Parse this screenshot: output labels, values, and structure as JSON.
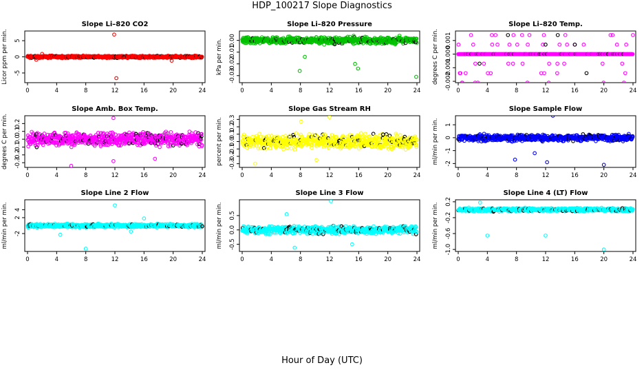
{
  "title": "HDP_100217  Slope Diagnostics",
  "x_axis_label": "Hour of Day (UTC)",
  "chart_data": [
    {
      "type": "scatter",
      "title": "Slope Li–820 CO2",
      "ylabel": "Licor ppm per min.",
      "color": "#ff0000",
      "xlim": [
        0,
        24
      ],
      "xticks": [
        0,
        4,
        8,
        12,
        16,
        20,
        24
      ],
      "ylim": [
        -8,
        8
      ],
      "yticks": [
        -5,
        0,
        5
      ],
      "yticklabels": [
        "-5",
        "0",
        "5"
      ],
      "base": 0,
      "spread": 0.5,
      "outliers": [
        [
          11.9,
          6.9
        ],
        [
          12.2,
          -6.6
        ],
        [
          2.0,
          0.9
        ],
        [
          19.8,
          -1.2
        ],
        [
          1.2,
          -0.9
        ]
      ],
      "seed": 11
    },
    {
      "type": "scatter",
      "title": "Slope Li–820 Pressure",
      "ylabel": "kPa per min.",
      "color": "#00c000",
      "xlim": [
        0,
        24
      ],
      "xticks": [
        0,
        4,
        8,
        12,
        16,
        20,
        24
      ],
      "ylim": [
        -0.036,
        0.008
      ],
      "yticks": [
        -0.03,
        -0.02,
        -0.01,
        0
      ],
      "yticklabels": [
        "-0.03",
        "-0.02",
        "-0.01",
        "0.00"
      ],
      "base": 0,
      "spread": 0.004,
      "outliers": [
        [
          7.9,
          -0.026
        ],
        [
          15.9,
          -0.024
        ],
        [
          23.9,
          -0.031
        ],
        [
          15.3,
          0.004
        ],
        [
          21.6,
          0.004
        ],
        [
          15.5,
          -0.02
        ],
        [
          8.6,
          -0.014
        ]
      ],
      "seed": 22
    },
    {
      "type": "scatter",
      "title": "Slope Li–820 Temp.",
      "ylabel": "degrees C per min.",
      "color": "#ff00ff",
      "xlim": [
        0,
        24
      ],
      "xticks": [
        0,
        4,
        8,
        12,
        16,
        20,
        24
      ],
      "ylim": [
        -0.0021,
        0.0017
      ],
      "yticks": [
        -0.002,
        -0.001,
        0,
        0.001
      ],
      "yticklabels": [
        "-0.002",
        "-0.001",
        "0.000",
        "0.001"
      ],
      "base": 0,
      "spread": 0,
      "levels": [
        0.0014,
        0.0007,
        -0.0007,
        -0.0014,
        -0.0021
      ],
      "outliers": [],
      "seed": 33
    },
    {
      "type": "scatter",
      "title": "Slope Amb. Box Temp.",
      "ylabel": "degrees C per min.",
      "color": "#ff00ff",
      "xlim": [
        0,
        24
      ],
      "xticks": [
        0,
        4,
        8,
        12,
        16,
        20,
        24
      ],
      "ylim": [
        -0.36,
        0.3
      ],
      "yticks": [
        -0.3,
        -0.2,
        -0.1,
        0,
        0.1,
        0.2
      ],
      "yticklabels": [
        "-0.3",
        "-0.2",
        "-0.1",
        "0.0",
        "0.1",
        "0.2"
      ],
      "base": 0,
      "spread": 0.12,
      "outliers": [
        [
          11.8,
          0.27
        ],
        [
          6.0,
          -0.34
        ],
        [
          11.8,
          -0.28
        ],
        [
          17.5,
          -0.25
        ]
      ],
      "seed": 44
    },
    {
      "type": "scatter",
      "title": "Slope Gas Stream RH",
      "ylabel": "percent per min.",
      "color": "#ffff00",
      "xlim": [
        0,
        24
      ],
      "xticks": [
        0,
        4,
        8,
        12,
        16,
        20,
        24
      ],
      "ylim": [
        -0.35,
        0.35
      ],
      "yticks": [
        -0.3,
        -0.2,
        -0.1,
        0,
        0.1,
        0.2,
        0.3
      ],
      "yticklabels": [
        "-0.3",
        "-0.2",
        "-0.1",
        "0.0",
        "0.1",
        "0.2",
        "0.3"
      ],
      "base": 0,
      "spread": 0.13,
      "outliers": [
        [
          12.0,
          0.33
        ],
        [
          8.1,
          0.27
        ],
        [
          10.2,
          -0.25
        ],
        [
          1.8,
          -0.3
        ]
      ],
      "seed": 55
    },
    {
      "type": "scatter",
      "title": "Slope Sample Flow",
      "ylabel": "ml/min per min.",
      "color": "#0000ff",
      "xlim": [
        0,
        24
      ],
      "xticks": [
        0,
        4,
        8,
        12,
        16,
        20,
        24
      ],
      "ylim": [
        -2.3,
        1.7
      ],
      "yticks": [
        -2,
        -1,
        0,
        1
      ],
      "yticklabels": [
        "-2",
        "-1",
        "0",
        "1"
      ],
      "base": 0,
      "spread": 0.35,
      "outliers": [
        [
          13.0,
          1.7
        ],
        [
          20.0,
          -2.1
        ],
        [
          12.2,
          -1.9
        ],
        [
          7.8,
          -1.7
        ],
        [
          10.5,
          -1.2
        ]
      ],
      "seed": 66
    },
    {
      "type": "scatter",
      "title": "Slope Line 2 Flow",
      "ylabel": "ml/min per min.",
      "color": "#00ffff",
      "xlim": [
        0,
        24
      ],
      "xticks": [
        0,
        4,
        8,
        12,
        16,
        20,
        24
      ],
      "ylim": [
        -6.5,
        6.5
      ],
      "yticks": [
        -2,
        2,
        4
      ],
      "yticklabels": [
        "-2",
        "2",
        "4"
      ],
      "base": 0,
      "spread": 0.6,
      "outliers": [
        [
          12.0,
          5.1
        ],
        [
          8.0,
          -5.8
        ],
        [
          4.5,
          -2.3
        ],
        [
          16.0,
          1.8
        ],
        [
          14.2,
          -1.5
        ]
      ],
      "seed": 77
    },
    {
      "type": "scatter",
      "title": "Slope Line 3 Flow",
      "ylabel": "ml/min per min.",
      "color": "#00ffff",
      "xlim": [
        0,
        24
      ],
      "xticks": [
        0,
        4,
        8,
        12,
        16,
        20,
        24
      ],
      "ylim": [
        -0.75,
        1.05
      ],
      "yticks": [
        -0.5,
        0,
        0.5
      ],
      "yticklabels": [
        "-0.5",
        "0.0",
        "0.5"
      ],
      "base": 0,
      "spread": 0.18,
      "outliers": [
        [
          12.2,
          1.0
        ],
        [
          7.2,
          -0.62
        ],
        [
          6.1,
          0.55
        ],
        [
          15.1,
          -0.5
        ]
      ],
      "seed": 88
    },
    {
      "type": "scatter",
      "title": "Slope Line 4 (LT) Flow",
      "ylabel": "ml/min per min.",
      "color": "#00ffff",
      "xlim": [
        0,
        24
      ],
      "xticks": [
        0,
        4,
        8,
        12,
        16,
        20,
        24
      ],
      "ylim": [
        -1.05,
        0.25
      ],
      "yticks": [
        -1.0,
        -0.6,
        -0.2,
        0.2
      ],
      "yticklabels": [
        "-1.0",
        "-0.6",
        "-0.2",
        "0.2"
      ],
      "base": 0,
      "spread": 0.06,
      "outliers": [
        [
          4.0,
          -0.65
        ],
        [
          12.0,
          -0.65
        ],
        [
          20.0,
          -1.0
        ],
        [
          3.0,
          0.18
        ]
      ],
      "seed": 99
    }
  ]
}
